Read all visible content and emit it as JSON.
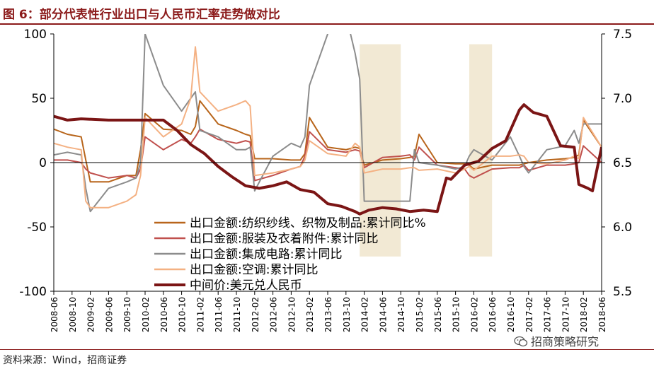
{
  "title": "图 6：部分代表性行业出口与人民币汇率走势做对比",
  "source": "资料来源：Wind，招商证券",
  "watermark": "招商策略研究",
  "watermark_icon": "wechat-icon",
  "chart_data": {
    "type": "line",
    "categories": [
      "2008-06",
      "2008-10",
      "2009-02",
      "2009-06",
      "2009-10",
      "2010-02",
      "2010-06",
      "2010-10",
      "2011-02",
      "2011-06",
      "2011-10",
      "2012-02",
      "2012-06",
      "2012-10",
      "2013-02",
      "2013-06",
      "2013-10",
      "2014-02",
      "2014-06",
      "2014-10",
      "2015-02",
      "2015-06",
      "2015-10",
      "2016-02",
      "2016-06",
      "2016-10",
      "2017-02",
      "2017-06",
      "2017-10",
      "2018-02",
      "2018-06"
    ],
    "y_left": {
      "min": -100,
      "max": 100,
      "ticks": [
        -100,
        -50,
        0,
        50,
        100
      ],
      "tick_labels": [
        "-100",
        "-50",
        "0",
        "50",
        "100"
      ]
    },
    "y_right": {
      "min": 5.5,
      "max": 7.5,
      "ticks": [
        5.5,
        6.0,
        6.5,
        7.0,
        7.5
      ],
      "tick_labels": [
        "5.5",
        "6.0",
        "6.5",
        "7.0",
        "7.5"
      ]
    },
    "shaded_ranges": [
      [
        "2014-01",
        "2014-10"
      ],
      [
        "2016-01",
        "2016-06"
      ]
    ],
    "grid": false,
    "legend_position": "inside-bottom-center",
    "series": [
      {
        "name": "出口金额:纺织纱线、织物及制品:累计同比%",
        "axis": "left",
        "color": "#B8651B",
        "x": [
          "2008-06",
          "2008-09",
          "2008-12",
          "2009-01",
          "2009-02",
          "2009-06",
          "2009-10",
          "2009-12",
          "2010-01",
          "2010-02",
          "2010-06",
          "2010-10",
          "2010-12",
          "2011-01",
          "2011-02",
          "2011-06",
          "2011-10",
          "2011-12",
          "2012-01",
          "2012-02",
          "2012-06",
          "2012-10",
          "2012-12",
          "2013-01",
          "2013-02",
          "2013-06",
          "2013-10",
          "2013-12",
          "2014-01",
          "2014-02",
          "2014-06",
          "2014-10",
          "2014-12",
          "2015-01",
          "2015-02",
          "2015-06",
          "2015-10",
          "2015-12",
          "2016-01",
          "2016-02",
          "2016-06",
          "2016-10",
          "2016-12",
          "2017-01",
          "2017-02",
          "2017-06",
          "2017-10",
          "2017-12",
          "2018-01",
          "2018-02",
          "2018-06"
        ],
        "values": [
          26,
          22,
          20,
          2,
          -15,
          -15,
          -10,
          -10,
          10,
          38,
          26,
          25,
          22,
          28,
          48,
          30,
          25,
          22,
          21,
          3,
          3,
          2,
          2,
          7,
          35,
          12,
          10,
          12,
          11,
          -2,
          2,
          3,
          4,
          5,
          22,
          0,
          -1,
          -1,
          -2,
          -5,
          -2,
          -2,
          -2,
          -1,
          0,
          2,
          3,
          4,
          6,
          33,
          12
        ]
      },
      {
        "name": "出口金额:服装及衣着附件:累计同比",
        "axis": "left",
        "color": "#C0504D",
        "x": [
          "2008-06",
          "2008-09",
          "2008-12",
          "2009-01",
          "2009-02",
          "2009-06",
          "2009-10",
          "2009-12",
          "2010-01",
          "2010-02",
          "2010-06",
          "2010-10",
          "2010-12",
          "2011-01",
          "2011-02",
          "2011-06",
          "2011-10",
          "2011-12",
          "2012-01",
          "2012-02",
          "2012-06",
          "2012-10",
          "2012-12",
          "2013-01",
          "2013-02",
          "2013-06",
          "2013-10",
          "2013-12",
          "2014-01",
          "2014-02",
          "2014-06",
          "2014-10",
          "2014-12",
          "2015-01",
          "2015-02",
          "2015-06",
          "2015-10",
          "2015-12",
          "2016-01",
          "2016-02",
          "2016-06",
          "2016-10",
          "2016-12",
          "2017-01",
          "2017-02",
          "2017-06",
          "2017-10",
          "2017-12",
          "2018-01",
          "2018-02",
          "2018-06"
        ],
        "values": [
          2,
          2,
          0,
          -5,
          -8,
          -12,
          -10,
          -12,
          -5,
          20,
          10,
          18,
          15,
          20,
          26,
          18,
          15,
          17,
          16,
          -14,
          -10,
          -5,
          -3,
          5,
          24,
          10,
          8,
          10,
          9,
          -4,
          4,
          5,
          6,
          2,
          12,
          -2,
          -4,
          -5,
          -10,
          -12,
          -5,
          -4,
          -4,
          -2,
          -6,
          -2,
          -2,
          -1,
          0,
          13,
          0
        ]
      },
      {
        "name": "出口金额:集成电路:累计同比",
        "axis": "left",
        "color": "#8C8C8C",
        "x": [
          "2008-06",
          "2008-09",
          "2008-12",
          "2009-01",
          "2009-02",
          "2009-06",
          "2009-10",
          "2009-12",
          "2010-01",
          "2010-02",
          "2010-06",
          "2010-10",
          "2010-12",
          "2011-01",
          "2011-02",
          "2011-06",
          "2011-10",
          "2011-12",
          "2012-01",
          "2012-02",
          "2012-06",
          "2012-10",
          "2012-12",
          "2013-01",
          "2013-02",
          "2013-06",
          "2013-07",
          "2013-10",
          "2013-11",
          "2013-12",
          "2014-01",
          "2014-02",
          "2014-06",
          "2014-10",
          "2014-12",
          "2015-01",
          "2015-02",
          "2015-06",
          "2015-10",
          "2015-12",
          "2016-01",
          "2016-02",
          "2016-06",
          "2016-10",
          "2016-12",
          "2017-01",
          "2017-02",
          "2017-06",
          "2017-10",
          "2017-12",
          "2018-01",
          "2018-02",
          "2018-06"
        ],
        "values": [
          6,
          8,
          6,
          -20,
          -38,
          -20,
          -15,
          -12,
          0,
          100,
          60,
          40,
          50,
          55,
          25,
          20,
          10,
          10,
          12,
          -22,
          5,
          15,
          12,
          20,
          60,
          100,
          150,
          150,
          100,
          85,
          65,
          -30,
          -30,
          -30,
          -30,
          10,
          0,
          -2,
          -5,
          -3,
          5,
          10,
          2,
          20,
          5,
          -3,
          -8,
          10,
          13,
          25,
          15,
          30,
          30
        ]
      },
      {
        "name": "出口金额:空调:累计同比",
        "axis": "left",
        "color": "#F4B183",
        "x": [
          "2008-06",
          "2008-09",
          "2008-12",
          "2009-01",
          "2009-02",
          "2009-06",
          "2009-10",
          "2009-12",
          "2010-01",
          "2010-02",
          "2010-06",
          "2010-10",
          "2010-12",
          "2011-01",
          "2011-02",
          "2011-06",
          "2011-10",
          "2011-12",
          "2012-01",
          "2012-02",
          "2012-06",
          "2012-10",
          "2012-12",
          "2013-01",
          "2013-02",
          "2013-06",
          "2013-10",
          "2013-12",
          "2014-01",
          "2014-02",
          "2014-06",
          "2014-10",
          "2014-12",
          "2015-01",
          "2015-02",
          "2015-06",
          "2015-10",
          "2015-12",
          "2016-01",
          "2016-02",
          "2016-06",
          "2016-10",
          "2016-12",
          "2017-01",
          "2017-02",
          "2017-06",
          "2017-10",
          "2017-12",
          "2018-01",
          "2018-02",
          "2018-06"
        ],
        "values": [
          15,
          12,
          10,
          -30,
          -35,
          -35,
          -30,
          -25,
          -10,
          35,
          20,
          30,
          50,
          90,
          55,
          40,
          45,
          48,
          44,
          -10,
          -8,
          -5,
          -3,
          2,
          17,
          7,
          5,
          15,
          12,
          -8,
          -5,
          -5,
          -4,
          -4,
          -6,
          -5,
          -8,
          -5,
          -3,
          -6,
          5,
          5,
          6,
          5,
          0,
          -1,
          2,
          5,
          3,
          35,
          12
        ]
      },
      {
        "name": "中间价:美元兑人民币",
        "axis": "right",
        "color": "#7B1515",
        "x": [
          "2008-06",
          "2008-09",
          "2008-12",
          "2009-06",
          "2009-12",
          "2010-06",
          "2010-09",
          "2010-12",
          "2011-03",
          "2011-06",
          "2011-09",
          "2011-12",
          "2012-03",
          "2012-06",
          "2012-09",
          "2012-12",
          "2013-03",
          "2013-06",
          "2013-09",
          "2013-12",
          "2014-01",
          "2014-03",
          "2014-06",
          "2014-09",
          "2014-12",
          "2015-03",
          "2015-06",
          "2015-08",
          "2015-09",
          "2015-12",
          "2016-03",
          "2016-06",
          "2016-09",
          "2016-12",
          "2017-01",
          "2017-03",
          "2017-06",
          "2017-09",
          "2017-12",
          "2018-01",
          "2018-03",
          "2018-04",
          "2018-06"
        ],
        "values": [
          6.86,
          6.83,
          6.84,
          6.83,
          6.83,
          6.83,
          6.75,
          6.64,
          6.57,
          6.47,
          6.39,
          6.32,
          6.3,
          6.32,
          6.35,
          6.29,
          6.27,
          6.18,
          6.16,
          6.12,
          6.1,
          6.13,
          6.15,
          6.14,
          6.12,
          6.13,
          6.12,
          6.38,
          6.37,
          6.48,
          6.51,
          6.61,
          6.67,
          6.91,
          6.95,
          6.89,
          6.86,
          6.63,
          6.62,
          6.33,
          6.3,
          6.28,
          6.62
        ]
      }
    ]
  }
}
